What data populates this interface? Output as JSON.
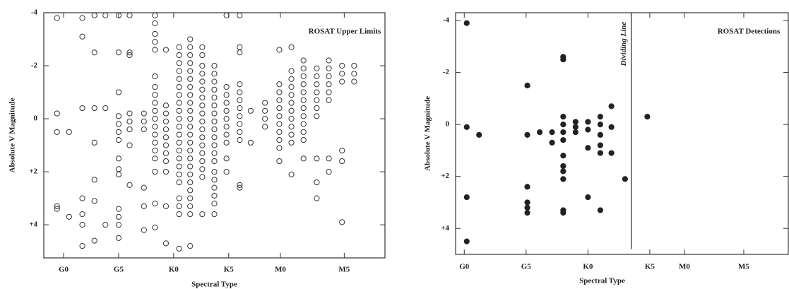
{
  "chart_data": [
    {
      "type": "scatter",
      "annotation": "ROSAT Upper Limits",
      "xlabel": "Spectral Type",
      "ylabel": "Absolute V Magnitude",
      "marker": "open",
      "color": "#333333",
      "xlim": [
        -1.8,
        29.2
      ],
      "ylim": [
        5.25,
        -4
      ],
      "xticks": [
        {
          "value": 0,
          "label": "G0"
        },
        {
          "value": 5,
          "label": "G5"
        },
        {
          "value": 10,
          "label": "K0"
        },
        {
          "value": 15,
          "label": "K5"
        },
        {
          "value": 19.7,
          "label": "M0"
        },
        {
          "value": 25.5,
          "label": "M5"
        }
      ],
      "yticks": [
        -4,
        -2,
        0,
        {
          "value": 2,
          "label": "+2"
        },
        {
          "value": 4,
          "label": "+4"
        }
      ],
      "x": [
        -0.6,
        -0.6,
        -0.6,
        -0.6,
        -0.6,
        0.5,
        0.5,
        1.7,
        1.7,
        1.7,
        1.7,
        1.7,
        1.7,
        1.7,
        2.8,
        2.8,
        2.8,
        2.8,
        2.8,
        2.8,
        2.8,
        3.8,
        3.8,
        3.8,
        5,
        5,
        5,
        5,
        5,
        5,
        5,
        5,
        5,
        5,
        5,
        5,
        5,
        5,
        6,
        6,
        6,
        6,
        6,
        6,
        6,
        6,
        7.3,
        7.3,
        7.3,
        7.3,
        7.3,
        7.3,
        8.3,
        8.3,
        8.3,
        8.3,
        8.3,
        8.3,
        8.3,
        8.3,
        8.3,
        8.3,
        8.3,
        8.3,
        8.3,
        8.3,
        8.3,
        8.3,
        8.3,
        8.3,
        8.3,
        9.3,
        9.3,
        9.3,
        9.3,
        9.3,
        9.3,
        9.3,
        9.3,
        9.3,
        9.3,
        9.3,
        9.3,
        10.5,
        10.5,
        10.5,
        10.5,
        10.5,
        10.5,
        10.5,
        10.5,
        10.5,
        10.5,
        10.5,
        10.5,
        10.5,
        10.5,
        10.5,
        10.5,
        10.5,
        10.5,
        10.5,
        10.5,
        10.5,
        10.5,
        11.5,
        11.5,
        11.5,
        11.5,
        11.5,
        11.5,
        11.5,
        11.5,
        11.5,
        11.5,
        11.5,
        11.5,
        11.5,
        11.5,
        11.5,
        11.5,
        11.5,
        11.5,
        11.5,
        11.5,
        11.5,
        11.5,
        11.5,
        11.5,
        12.6,
        12.6,
        12.6,
        12.6,
        12.6,
        12.6,
        12.6,
        12.6,
        12.6,
        12.6,
        12.6,
        12.6,
        12.6,
        12.6,
        12.6,
        12.6,
        12.6,
        12.6,
        13.7,
        13.7,
        13.7,
        13.7,
        13.7,
        13.7,
        13.7,
        13.7,
        13.7,
        13.7,
        13.7,
        13.7,
        13.7,
        13.7,
        13.7,
        13.7,
        13.7,
        13.7,
        13.7,
        14.8,
        14.8,
        14.8,
        14.8,
        14.8,
        14.8,
        14.8,
        14.8,
        14.8,
        14.8,
        14.8,
        16,
        16,
        16,
        16,
        16,
        16,
        16,
        16,
        16,
        16,
        16,
        16,
        16,
        17,
        17,
        18.3,
        18.3,
        18.3,
        18.3,
        19.6,
        19.6,
        19.6,
        19.6,
        19.6,
        19.6,
        19.6,
        19.6,
        19.6,
        19.6,
        19.6,
        20.7,
        20.7,
        20.7,
        20.7,
        20.7,
        20.7,
        20.7,
        20.7,
        20.7,
        20.7,
        20.7,
        20.7,
        21.8,
        21.8,
        21.8,
        21.8,
        21.8,
        21.8,
        21.8,
        21.8,
        21.8,
        21.8,
        21.8,
        21.8,
        23,
        23,
        23,
        23,
        23,
        23,
        23,
        23,
        23,
        23,
        24.1,
        24.1,
        24.1,
        24.1,
        24.1,
        24.1,
        24.1,
        24.1,
        25.3,
        25.3,
        25.3,
        25.3,
        25.3,
        25.3,
        26.4,
        26.4,
        26.4
      ],
      "values": [
        -3.8,
        -0.2,
        0.5,
        3.3,
        3.4,
        0.5,
        3.7,
        -3.8,
        -3.1,
        -0.4,
        3.0,
        3.6,
        4.0,
        4.8,
        -3.9,
        -2.5,
        -0.4,
        0.9,
        2.3,
        3.1,
        4.6,
        -3.9,
        -0.4,
        4.0,
        -3.9,
        -2.5,
        -1.0,
        -0.1,
        0.2,
        0.5,
        0.8,
        1.5,
        1.9,
        2.1,
        3.4,
        3.7,
        4.0,
        4.5,
        -3.9,
        -2.5,
        -2.4,
        -0.2,
        0.1,
        0.4,
        1.0,
        2.5,
        -0.2,
        0.1,
        0.4,
        2.6,
        3.3,
        4.2,
        -3.9,
        -3.6,
        -3.2,
        -2.9,
        -2.6,
        -1.6,
        -1.2,
        -0.9,
        -0.6,
        -0.3,
        0,
        0.3,
        0.6,
        0.9,
        1.2,
        1.5,
        2.0,
        3.2,
        4.1,
        -2.6,
        -0.5,
        -0.2,
        0.1,
        0.4,
        0.7,
        1.0,
        1.3,
        1.6,
        2.0,
        3.3,
        4.7,
        -2.7,
        -2.4,
        -2.1,
        -1.8,
        -1.5,
        -1.2,
        -0.9,
        -0.6,
        -0.3,
        0,
        0.3,
        0.6,
        0.9,
        1.2,
        1.5,
        1.8,
        2.1,
        2.4,
        3.0,
        3.3,
        3.6,
        4.9,
        -3.0,
        -2.7,
        -2.4,
        -2.1,
        -1.8,
        -1.5,
        -1.2,
        -0.9,
        -0.6,
        -0.3,
        0,
        0.3,
        0.6,
        0.9,
        1.2,
        1.5,
        1.8,
        2.1,
        2.4,
        2.7,
        3.0,
        3.3,
        3.6,
        4.8,
        -2.7,
        -2.4,
        -2.0,
        -1.7,
        -1.4,
        -1.1,
        -0.8,
        -0.5,
        -0.2,
        0.1,
        0.4,
        0.7,
        1.0,
        1.3,
        1.6,
        1.9,
        2.2,
        3.6,
        -2.0,
        -1.7,
        -1.4,
        -1.1,
        -0.8,
        -0.5,
        -0.2,
        0.1,
        0.4,
        0.7,
        1.0,
        1.3,
        1.6,
        2.0,
        2.3,
        2.6,
        2.9,
        3.2,
        3.6,
        -3.9,
        -1.2,
        -0.9,
        -0.6,
        -0.3,
        0,
        0.3,
        0.6,
        0.9,
        1.5,
        2.0,
        -3.9,
        -2.7,
        -2.5,
        -1.3,
        -1.0,
        -0.7,
        -0.4,
        -0.1,
        0.2,
        0.5,
        0.8,
        2.5,
        2.6,
        -0.3,
        0.9,
        -0.6,
        -0.3,
        0,
        0.3,
        -2.6,
        -1.3,
        -1.0,
        -0.7,
        -0.4,
        -0.1,
        0.2,
        0.5,
        0.8,
        1.1,
        1.6,
        -2.7,
        -1.8,
        -1.5,
        -1.2,
        -0.9,
        -0.6,
        -0.3,
        0,
        0.3,
        0.6,
        0.9,
        2.1,
        -2.2,
        -1.9,
        -1.6,
        -1.3,
        -1.0,
        -0.7,
        -0.4,
        -0.1,
        0.2,
        0.5,
        0.8,
        1.5,
        -1.9,
        -1.6,
        -1.3,
        -1.0,
        -0.7,
        -0.4,
        -0.1,
        1.5,
        2.4,
        3.0,
        -2.2,
        -1.9,
        -1.6,
        -1.3,
        -1.0,
        -0.7,
        1.5,
        2.0,
        -2.0,
        -1.7,
        -1.4,
        1.2,
        1.6,
        3.9,
        -2.0,
        -1.7,
        -1.4
      ]
    },
    {
      "type": "scatter",
      "annotation": "ROSAT Detections",
      "xlabel": "Spectral Type",
      "ylabel": "Absolute V Magnitude",
      "marker": "filled",
      "color": "#222222",
      "xlim": [
        -0.7,
        26.2
      ],
      "ylim": [
        5,
        -4.3
      ],
      "xticks": [
        {
          "value": 0,
          "label": "G0"
        },
        {
          "value": 5,
          "label": "G5"
        },
        {
          "value": 10,
          "label": "K0"
        },
        {
          "value": 15,
          "label": "K5"
        },
        {
          "value": 17.8,
          "label": "M0"
        },
        {
          "value": 22.6,
          "label": "M5"
        }
      ],
      "yticks": [
        -4,
        -2,
        0,
        {
          "value": 2,
          "label": "+2"
        },
        {
          "value": 4,
          "label": "+4"
        }
      ],
      "dividing_line": {
        "label": "Dividing Line",
        "x": 13.5,
        "y": [
          -4.3,
          4.8
        ]
      },
      "x": [
        0.2,
        0.2,
        1.2,
        0.2,
        0.2,
        5.1,
        5.1,
        5.1,
        5.1,
        5.1,
        5.1,
        6.1,
        7.1,
        7.1,
        8.0,
        8.0,
        8.0,
        8.0,
        8.0,
        8.0,
        8.0,
        8.0,
        8.0,
        8.0,
        8.0,
        8.0,
        9.0,
        9.0,
        9.0,
        10.0,
        10.0,
        10.0,
        10.0,
        11.0,
        11.0,
        11.0,
        11.0,
        11.0,
        11.0,
        11.9,
        11.9,
        11.9,
        13.0,
        14.8
      ],
      "values": [
        -3.9,
        0.1,
        0.4,
        2.8,
        4.5,
        -1.5,
        0.4,
        2.4,
        3.0,
        3.2,
        3.4,
        0.3,
        0.3,
        0.7,
        -2.6,
        -2.5,
        -0.3,
        0,
        0.3,
        0.6,
        1.2,
        1.6,
        1.8,
        2.1,
        3.3,
        3.4,
        -0.1,
        0.1,
        0.3,
        -0.1,
        0.2,
        0.9,
        2.8,
        -0.3,
        0,
        0.4,
        0.8,
        1.1,
        3.3,
        -0.7,
        0.1,
        1.1,
        2.1,
        -0.3
      ]
    }
  ]
}
